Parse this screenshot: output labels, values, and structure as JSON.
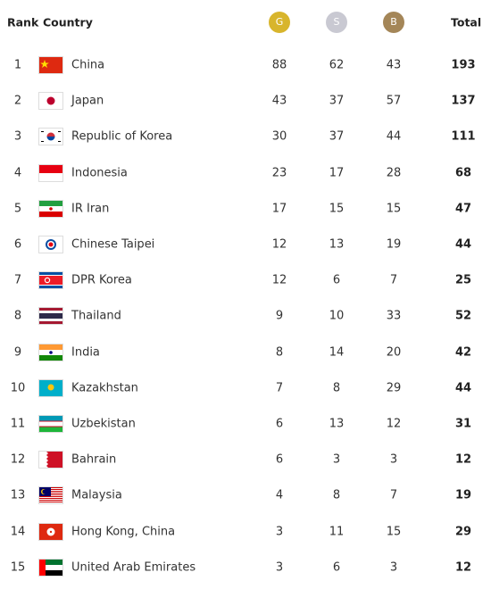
{
  "header": {
    "rank": "Rank",
    "country": "Country",
    "gold": "G",
    "silver": "S",
    "bronze": "B",
    "total": "Total"
  },
  "table": {
    "rows": [
      [
        1,
        "China",
        88,
        62,
        43,
        193
      ],
      [
        2,
        "Japan",
        43,
        37,
        57,
        137
      ],
      [
        3,
        "Republic of Korea",
        30,
        37,
        44,
        111
      ],
      [
        4,
        "Indonesia",
        23,
        17,
        28,
        68
      ],
      [
        5,
        "IR Iran",
        17,
        15,
        15,
        47
      ],
      [
        6,
        "Chinese Taipei",
        12,
        13,
        19,
        44
      ],
      [
        7,
        "DPR Korea",
        12,
        6,
        7,
        25
      ],
      [
        8,
        "Thailand",
        9,
        10,
        33,
        52
      ],
      [
        9,
        "India",
        8,
        14,
        20,
        42
      ],
      [
        10,
        "Kazakhstan",
        7,
        8,
        29,
        44
      ],
      [
        11,
        "Uzbekistan",
        6,
        13,
        12,
        31
      ],
      [
        12,
        "Bahrain",
        6,
        3,
        3,
        12
      ],
      [
        13,
        "Malaysia",
        4,
        8,
        7,
        19
      ],
      [
        14,
        "Hong Kong, China",
        3,
        11,
        15,
        29
      ],
      [
        15,
        "United Arab Emirates",
        3,
        6,
        3,
        12
      ]
    ]
  }
}
